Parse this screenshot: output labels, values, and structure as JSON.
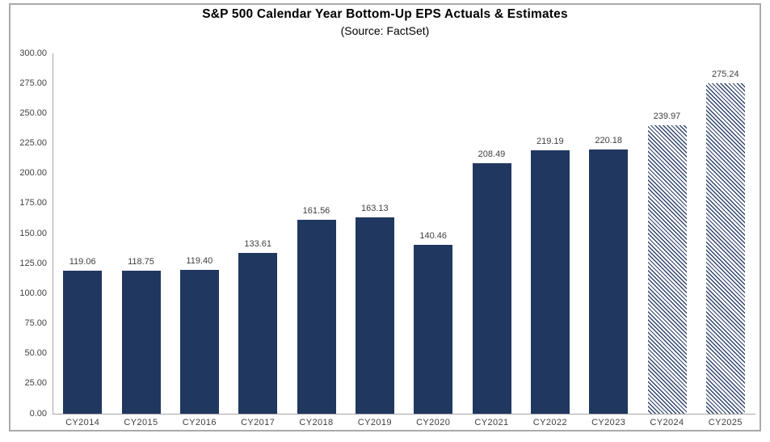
{
  "chart_data": {
    "type": "bar",
    "title": "S&P 500 Calendar Year Bottom-Up EPS Actuals & Estimates",
    "subtitle": "(Source: FactSet)",
    "categories": [
      "CY2014",
      "CY2015",
      "CY2016",
      "CY2017",
      "CY2018",
      "CY2019",
      "CY2020",
      "CY2021",
      "CY2022",
      "CY2023",
      "CY2024",
      "CY2025"
    ],
    "values": [
      119.06,
      118.75,
      119.4,
      133.61,
      161.56,
      163.13,
      140.46,
      208.49,
      219.19,
      220.18,
      239.97,
      275.24
    ],
    "is_estimate": [
      false,
      false,
      false,
      false,
      false,
      false,
      false,
      false,
      false,
      false,
      true,
      true
    ],
    "xlabel": "",
    "ylabel": "",
    "ylim": [
      0,
      300
    ],
    "ytick_step": 25,
    "ytick_labels": [
      "0.00",
      "25.00",
      "50.00",
      "75.00",
      "100.00",
      "125.00",
      "150.00",
      "175.00",
      "200.00",
      "225.00",
      "250.00",
      "275.00",
      "300.00"
    ],
    "grid": false,
    "legend_position": "none",
    "data_labels": true,
    "colors": {
      "actual_bar": "#203760",
      "estimate_bar_pattern": "diagonal-hatch-navy-on-white",
      "axis_line": "#a6a6a6",
      "label_text": "#404040",
      "frame_border": "#aaaaaa"
    }
  }
}
